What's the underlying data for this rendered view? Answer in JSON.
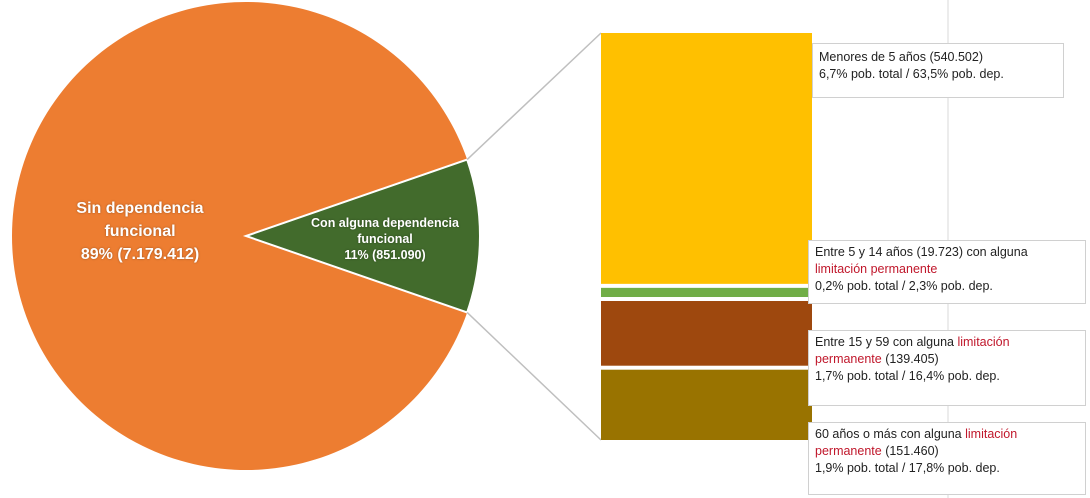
{
  "colors": {
    "sin_dependencia": "#ED7D31",
    "con_dependencia": "#426B2C",
    "menores_5": "#FFC000",
    "entre_5_14": "#70AD47",
    "entre_15_59": "#9E480E",
    "mayores_60": "#997300",
    "highlight_text": "#C0172B"
  },
  "chart_data": {
    "type": "pie",
    "title": "",
    "pie": {
      "slices": [
        {
          "key": "sin",
          "name_lines": [
            "Sin dependencia",
            "funcional"
          ],
          "value_text": "89% (7.179.412)",
          "value": 7179412,
          "percent": 89,
          "color": "#ED7D31"
        },
        {
          "key": "con",
          "name_lines": [
            "Con alguna dependencia",
            "funcional"
          ],
          "value_text": "11% (851.090)",
          "value": 851090,
          "percent": 11,
          "color": "#426B2C"
        }
      ]
    },
    "breakdown": {
      "type": "stacked_bar",
      "segments": [
        {
          "key": "menores_5",
          "value": 540502,
          "percent_total": 6.7,
          "percent_dep": 63.5,
          "color": "#FFC000",
          "label_lines": [
            [
              "Menores de 5 años (540.502)"
            ],
            [
              "6,7% pob. total / 63,5% pob. dep."
            ]
          ]
        },
        {
          "key": "entre_5_14",
          "value": 19723,
          "percent_total": 0.2,
          "percent_dep": 2.3,
          "color": "#70AD47",
          "label_lines": [
            [
              "Entre 5 y 14 años (19.723) con alguna"
            ],
            [
              {
                "hl": "limitación permanente"
              }
            ],
            [
              "0,2% pob. total / 2,3% pob. dep."
            ]
          ]
        },
        {
          "key": "entre_15_59",
          "value": 139405,
          "percent_total": 1.7,
          "percent_dep": 16.4,
          "color": "#9E480E",
          "label_lines": [
            [
              "Entre 15 y 59 con alguna ",
              {
                "hl": "limitación"
              }
            ],
            [
              {
                "hl": "permanente"
              },
              " (139.405)"
            ],
            [
              "1,7% pob. total / 16,4% pob. dep."
            ]
          ]
        },
        {
          "key": "mayores_60",
          "value": 151460,
          "percent_total": 1.9,
          "percent_dep": 17.8,
          "color": "#997300",
          "label_lines": [
            [
              "60 años o más con alguna ",
              {
                "hl": "limitación"
              }
            ],
            [
              {
                "hl": "permanente"
              },
              " (151.460)"
            ],
            [
              "1,9% pob. total / 17,8% pob. dep."
            ]
          ]
        }
      ]
    }
  }
}
